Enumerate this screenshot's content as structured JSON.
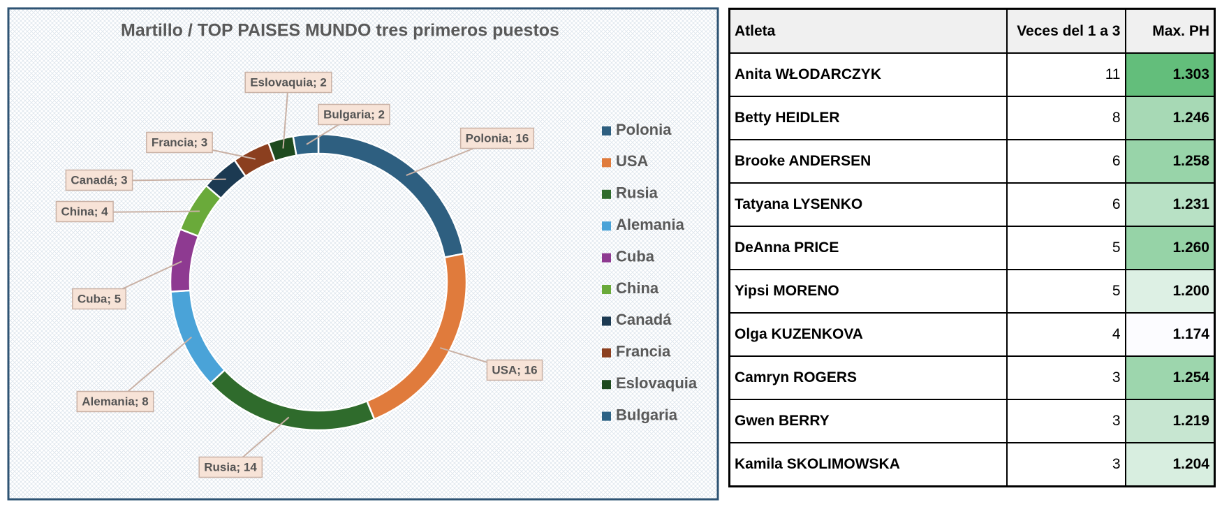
{
  "chart_data": {
    "type": "donut",
    "title": "Martillo / TOP PAISES MUNDO tres primeros puestos",
    "categories": [
      "Polonia",
      "USA",
      "Rusia",
      "Alemania",
      "Cuba",
      "China",
      "Canadá",
      "Francia",
      "Eslovaquia",
      "Bulgaria"
    ],
    "values": [
      16,
      16,
      14,
      8,
      5,
      4,
      3,
      3,
      2,
      2
    ],
    "value_labels": [
      "Polonia; 16",
      "USA; 16",
      "Rusia; 14",
      "Alemania; 8",
      "Cuba; 5",
      "China; 4",
      "Canadá; 3",
      "Francia; 3",
      "Eslovaquia; 2",
      "Bulgaria; 2"
    ],
    "colors": [
      "#2e5f80",
      "#e07b3c",
      "#2f6b2c",
      "#4aa3d8",
      "#8e3a91",
      "#6aaa3a",
      "#1c3a52",
      "#8b3f1f",
      "#1e4a1e",
      "#2e6385"
    ],
    "legend": "right"
  },
  "table": {
    "header": [
      "Atleta",
      "Veces del 1 a 3",
      "Max. PH"
    ],
    "rows": [
      [
        "Anita WŁODARCZYK",
        11,
        "1.303"
      ],
      [
        "Betty HEIDLER",
        8,
        "1.246"
      ],
      [
        "Brooke ANDERSEN",
        6,
        "1.258"
      ],
      [
        "Tatyana LYSENKO",
        6,
        "1.231"
      ],
      [
        "DeAnna PRICE",
        5,
        "1.260"
      ],
      [
        "Yipsi MORENO",
        5,
        "1.200"
      ],
      [
        "Olga KUZENKOVA",
        4,
        "1.174"
      ],
      [
        "Camryn ROGERS",
        3,
        "1.254"
      ],
      [
        "Gwen BERRY",
        3,
        "1.219"
      ],
      [
        "Kamila SKOLIMOWSKA",
        3,
        "1.204"
      ]
    ]
  }
}
